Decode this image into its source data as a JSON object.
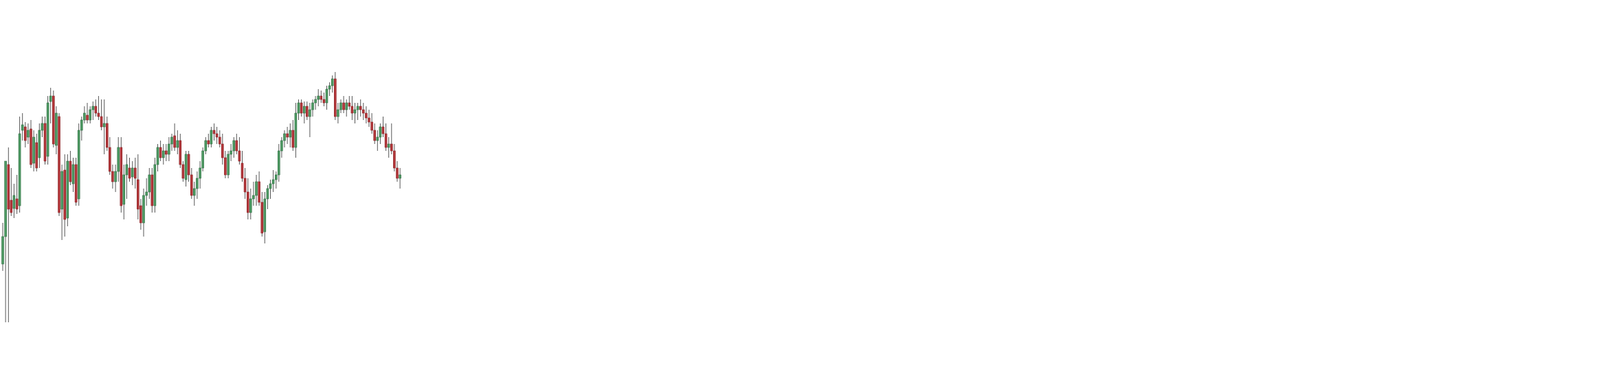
{
  "chart_data": {
    "type": "candlestick",
    "title": "",
    "xlabel": "",
    "ylabel": "",
    "axes_visible": false,
    "grid": false,
    "legend": "none",
    "colors": {
      "up": "#4e9a63",
      "down": "#b3373a",
      "up_border": "#2f6e43",
      "down_border": "#8a2226",
      "wick": "#555555"
    },
    "ylim": [
      0,
      560
    ],
    "bar_step": 4.1,
    "series": [
      {
        "values": [
          {
            "o": 385,
            "h": 325,
            "l": 395,
            "c": 345
          },
          {
            "o": 345,
            "h": 330,
            "l": 470,
            "c": 235
          },
          {
            "o": 240,
            "h": 215,
            "l": 470,
            "c": 305
          },
          {
            "o": 292,
            "h": 245,
            "l": 315,
            "c": 310
          },
          {
            "o": 304,
            "h": 268,
            "l": 318,
            "c": 285
          },
          {
            "o": 290,
            "h": 255,
            "l": 312,
            "c": 305
          },
          {
            "o": 300,
            "h": 170,
            "l": 310,
            "c": 195
          },
          {
            "o": 190,
            "h": 165,
            "l": 205,
            "c": 182
          },
          {
            "o": 185,
            "h": 178,
            "l": 215,
            "c": 205
          },
          {
            "o": 200,
            "h": 180,
            "l": 210,
            "c": 190
          },
          {
            "o": 188,
            "h": 175,
            "l": 245,
            "c": 240
          },
          {
            "o": 238,
            "h": 190,
            "l": 250,
            "c": 200
          },
          {
            "o": 208,
            "h": 195,
            "l": 250,
            "c": 245
          },
          {
            "o": 230,
            "h": 180,
            "l": 245,
            "c": 190
          },
          {
            "o": 190,
            "h": 170,
            "l": 200,
            "c": 180
          },
          {
            "o": 180,
            "h": 170,
            "l": 240,
            "c": 235
          },
          {
            "o": 228,
            "h": 140,
            "l": 240,
            "c": 150
          },
          {
            "o": 148,
            "h": 128,
            "l": 180,
            "c": 140
          },
          {
            "o": 140,
            "h": 132,
            "l": 215,
            "c": 210
          },
          {
            "o": 212,
            "h": 155,
            "l": 225,
            "c": 165
          },
          {
            "o": 170,
            "h": 165,
            "l": 315,
            "c": 310
          },
          {
            "o": 305,
            "h": 240,
            "l": 350,
            "c": 250
          },
          {
            "o": 248,
            "h": 225,
            "l": 345,
            "c": 320
          },
          {
            "o": 318,
            "h": 225,
            "l": 330,
            "c": 235
          },
          {
            "o": 235,
            "h": 220,
            "l": 270,
            "c": 265
          },
          {
            "o": 268,
            "h": 230,
            "l": 280,
            "c": 240
          },
          {
            "o": 240,
            "h": 230,
            "l": 300,
            "c": 295
          },
          {
            "o": 290,
            "h": 180,
            "l": 300,
            "c": 190
          },
          {
            "o": 190,
            "h": 170,
            "l": 205,
            "c": 175
          },
          {
            "o": 175,
            "h": 155,
            "l": 180,
            "c": 165
          },
          {
            "o": 168,
            "h": 150,
            "l": 180,
            "c": 175
          },
          {
            "o": 175,
            "h": 155,
            "l": 180,
            "c": 160
          },
          {
            "o": 160,
            "h": 148,
            "l": 175,
            "c": 155
          },
          {
            "o": 155,
            "h": 145,
            "l": 170,
            "c": 165
          },
          {
            "o": 165,
            "h": 140,
            "l": 175,
            "c": 170
          },
          {
            "o": 170,
            "h": 145,
            "l": 190,
            "c": 185
          },
          {
            "o": 185,
            "h": 145,
            "l": 225,
            "c": 180
          },
          {
            "o": 180,
            "h": 170,
            "l": 220,
            "c": 215
          },
          {
            "o": 215,
            "h": 200,
            "l": 255,
            "c": 250
          },
          {
            "o": 250,
            "h": 240,
            "l": 275,
            "c": 265
          },
          {
            "o": 265,
            "h": 240,
            "l": 280,
            "c": 250
          },
          {
            "o": 250,
            "h": 200,
            "l": 265,
            "c": 215
          },
          {
            "o": 215,
            "h": 200,
            "l": 310,
            "c": 300
          },
          {
            "o": 298,
            "h": 240,
            "l": 320,
            "c": 255
          },
          {
            "o": 255,
            "h": 225,
            "l": 290,
            "c": 240
          },
          {
            "o": 245,
            "h": 230,
            "l": 265,
            "c": 260
          },
          {
            "o": 258,
            "h": 235,
            "l": 270,
            "c": 245
          },
          {
            "o": 245,
            "h": 230,
            "l": 275,
            "c": 260
          },
          {
            "o": 262,
            "h": 225,
            "l": 320,
            "c": 305
          },
          {
            "o": 300,
            "h": 290,
            "l": 335,
            "c": 325
          },
          {
            "o": 325,
            "h": 275,
            "l": 345,
            "c": 285
          },
          {
            "o": 285,
            "h": 260,
            "l": 300,
            "c": 280
          },
          {
            "o": 280,
            "h": 245,
            "l": 290,
            "c": 255
          },
          {
            "o": 255,
            "h": 245,
            "l": 310,
            "c": 300
          },
          {
            "o": 300,
            "h": 230,
            "l": 310,
            "c": 240
          },
          {
            "o": 240,
            "h": 210,
            "l": 250,
            "c": 215
          },
          {
            "o": 215,
            "h": 205,
            "l": 235,
            "c": 230
          },
          {
            "o": 230,
            "h": 210,
            "l": 240,
            "c": 220
          },
          {
            "o": 220,
            "h": 210,
            "l": 235,
            "c": 225
          },
          {
            "o": 225,
            "h": 200,
            "l": 235,
            "c": 210
          },
          {
            "o": 210,
            "h": 195,
            "l": 220,
            "c": 200
          },
          {
            "o": 198,
            "h": 180,
            "l": 220,
            "c": 215
          },
          {
            "o": 215,
            "h": 190,
            "l": 225,
            "c": 205
          },
          {
            "o": 205,
            "h": 195,
            "l": 245,
            "c": 240
          },
          {
            "o": 240,
            "h": 235,
            "l": 265,
            "c": 260
          },
          {
            "o": 262,
            "h": 220,
            "l": 272,
            "c": 225
          },
          {
            "o": 225,
            "h": 220,
            "l": 265,
            "c": 255
          },
          {
            "o": 255,
            "h": 245,
            "l": 290,
            "c": 285
          },
          {
            "o": 285,
            "h": 265,
            "l": 300,
            "c": 275
          },
          {
            "o": 275,
            "h": 250,
            "l": 290,
            "c": 260
          },
          {
            "o": 260,
            "h": 235,
            "l": 275,
            "c": 245
          },
          {
            "o": 245,
            "h": 215,
            "l": 250,
            "c": 220
          },
          {
            "o": 220,
            "h": 200,
            "l": 225,
            "c": 205
          },
          {
            "o": 205,
            "h": 195,
            "l": 215,
            "c": 210
          },
          {
            "o": 210,
            "h": 185,
            "l": 215,
            "c": 190
          },
          {
            "o": 190,
            "h": 180,
            "l": 205,
            "c": 195
          },
          {
            "o": 195,
            "h": 185,
            "l": 210,
            "c": 200
          },
          {
            "o": 200,
            "h": 190,
            "l": 215,
            "c": 210
          },
          {
            "o": 210,
            "h": 195,
            "l": 240,
            "c": 230
          },
          {
            "o": 230,
            "h": 220,
            "l": 260,
            "c": 255
          },
          {
            "o": 255,
            "h": 220,
            "l": 260,
            "c": 225
          },
          {
            "o": 225,
            "h": 210,
            "l": 235,
            "c": 220
          },
          {
            "o": 220,
            "h": 200,
            "l": 230,
            "c": 205
          },
          {
            "o": 205,
            "h": 195,
            "l": 225,
            "c": 220
          },
          {
            "o": 220,
            "h": 200,
            "l": 240,
            "c": 235
          },
          {
            "o": 238,
            "h": 220,
            "l": 265,
            "c": 260
          },
          {
            "o": 260,
            "h": 245,
            "l": 290,
            "c": 280
          },
          {
            "o": 280,
            "h": 260,
            "l": 320,
            "c": 310
          },
          {
            "o": 310,
            "h": 275,
            "l": 320,
            "c": 290
          },
          {
            "o": 290,
            "h": 265,
            "l": 300,
            "c": 285
          },
          {
            "o": 285,
            "h": 255,
            "l": 300,
            "c": 265
          },
          {
            "o": 265,
            "h": 250,
            "l": 300,
            "c": 295
          },
          {
            "o": 295,
            "h": 280,
            "l": 345,
            "c": 340
          },
          {
            "o": 338,
            "h": 280,
            "l": 355,
            "c": 290
          },
          {
            "o": 290,
            "h": 270,
            "l": 305,
            "c": 275
          },
          {
            "o": 275,
            "h": 262,
            "l": 290,
            "c": 268
          },
          {
            "o": 268,
            "h": 248,
            "l": 280,
            "c": 262
          },
          {
            "o": 262,
            "h": 250,
            "l": 275,
            "c": 255
          },
          {
            "o": 255,
            "h": 210,
            "l": 265,
            "c": 220
          },
          {
            "o": 220,
            "h": 200,
            "l": 230,
            "c": 205
          },
          {
            "o": 205,
            "h": 190,
            "l": 215,
            "c": 195
          },
          {
            "o": 195,
            "h": 185,
            "l": 210,
            "c": 200
          },
          {
            "o": 200,
            "h": 180,
            "l": 215,
            "c": 190
          },
          {
            "o": 190,
            "h": 175,
            "l": 220,
            "c": 215
          },
          {
            "o": 215,
            "h": 150,
            "l": 230,
            "c": 165
          },
          {
            "o": 165,
            "h": 145,
            "l": 175,
            "c": 150
          },
          {
            "o": 150,
            "h": 145,
            "l": 170,
            "c": 165
          },
          {
            "o": 165,
            "h": 148,
            "l": 180,
            "c": 155
          },
          {
            "o": 155,
            "h": 148,
            "l": 175,
            "c": 170
          },
          {
            "o": 170,
            "h": 150,
            "l": 200,
            "c": 160
          },
          {
            "o": 160,
            "h": 145,
            "l": 170,
            "c": 150
          },
          {
            "o": 150,
            "h": 140,
            "l": 160,
            "c": 145
          },
          {
            "o": 145,
            "h": 130,
            "l": 155,
            "c": 140
          },
          {
            "o": 140,
            "h": 132,
            "l": 150,
            "c": 145
          },
          {
            "o": 145,
            "h": 135,
            "l": 155,
            "c": 150
          },
          {
            "o": 150,
            "h": 125,
            "l": 160,
            "c": 130
          },
          {
            "o": 130,
            "h": 120,
            "l": 140,
            "c": 125
          },
          {
            "o": 125,
            "h": 110,
            "l": 135,
            "c": 115
          },
          {
            "o": 115,
            "h": 105,
            "l": 175,
            "c": 170
          },
          {
            "o": 170,
            "h": 150,
            "l": 180,
            "c": 160
          },
          {
            "o": 160,
            "h": 145,
            "l": 165,
            "c": 150
          },
          {
            "o": 150,
            "h": 140,
            "l": 165,
            "c": 160
          },
          {
            "o": 160,
            "h": 145,
            "l": 170,
            "c": 150
          },
          {
            "o": 150,
            "h": 140,
            "l": 160,
            "c": 155
          },
          {
            "o": 155,
            "h": 140,
            "l": 175,
            "c": 165
          },
          {
            "o": 165,
            "h": 150,
            "l": 180,
            "c": 160
          },
          {
            "o": 160,
            "h": 150,
            "l": 175,
            "c": 155
          },
          {
            "o": 155,
            "h": 145,
            "l": 170,
            "c": 160
          },
          {
            "o": 160,
            "h": 150,
            "l": 175,
            "c": 165
          },
          {
            "o": 165,
            "h": 155,
            "l": 180,
            "c": 172
          },
          {
            "o": 172,
            "h": 160,
            "l": 185,
            "c": 178
          },
          {
            "o": 178,
            "h": 165,
            "l": 195,
            "c": 190
          },
          {
            "o": 190,
            "h": 180,
            "l": 210,
            "c": 205
          },
          {
            "o": 205,
            "h": 190,
            "l": 220,
            "c": 200
          },
          {
            "o": 200,
            "h": 180,
            "l": 210,
            "c": 185
          },
          {
            "o": 185,
            "h": 170,
            "l": 200,
            "c": 195
          },
          {
            "o": 195,
            "h": 180,
            "l": 220,
            "c": 215
          },
          {
            "o": 215,
            "h": 200,
            "l": 230,
            "c": 210
          },
          {
            "o": 210,
            "h": 180,
            "l": 225,
            "c": 220
          },
          {
            "o": 220,
            "h": 210,
            "l": 250,
            "c": 245
          },
          {
            "o": 245,
            "h": 235,
            "l": 265,
            "c": 260
          },
          {
            "o": 260,
            "h": 245,
            "l": 275,
            "c": 255
          }
        ]
      }
    ]
  }
}
